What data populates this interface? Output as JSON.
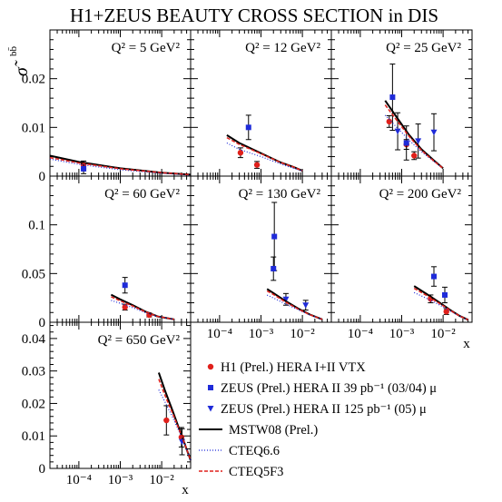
{
  "title": "H1+ZEUS BEAUTY CROSS SECTION in DIS",
  "ylabel": "σ̃",
  "ylabel_superscript": "bb̄",
  "xlabel": "x",
  "colors": {
    "h1": "#e0201b",
    "zeus_03_04": "#1f2bd9",
    "zeus_05": "#1f2bd9",
    "mstw": "#000000",
    "cteq66": "#1f2bd9",
    "cteq5f3": "#e0201b"
  },
  "legend": [
    {
      "key": "h1",
      "label": "H1 (Prel.) HERA I+II VTX",
      "marker": "circle"
    },
    {
      "key": "zeus_03_04",
      "label": "ZEUS (Prel.) HERA II 39 pb⁻¹ (03/04) μ",
      "marker": "square"
    },
    {
      "key": "zeus_05",
      "label": "ZEUS (Prel.) HERA II 125 pb⁻¹ (05) μ",
      "marker": "triangle-down"
    },
    {
      "key": "mstw",
      "label": "MSTW08 (Prel.)",
      "marker": "solid-line"
    },
    {
      "key": "cteq66",
      "label": "CTEQ6.6",
      "marker": "dotted-line"
    },
    {
      "key": "cteq5f3",
      "label": "CTEQ5F3",
      "marker": "dashed-line"
    }
  ],
  "chart_data": [
    {
      "type": "scatter",
      "q2_label": "Q² = 5 GeV²",
      "xscale": "log",
      "xlim": [
        2e-05,
        0.05
      ],
      "ylim": [
        0,
        0.03
      ],
      "yticks": [
        0,
        0.01,
        0.02
      ],
      "ytick_labels": [
        "0",
        "0.01",
        "0.02"
      ],
      "series": [
        {
          "key": "h1",
          "points": [
            {
              "x": 0.00013,
              "y": 0.0023,
              "err": 0.0008
            }
          ]
        },
        {
          "key": "zeus_03_04",
          "points": [
            {
              "x": 0.00013,
              "y": 0.0015,
              "err": 0.001
            }
          ]
        },
        {
          "key": "mstw",
          "curve": [
            [
              2e-05,
              0.0042
            ],
            [
              0.0001,
              0.0029
            ],
            [
              0.001,
              0.0016
            ],
            [
              0.01,
              0.0007
            ],
            [
              0.05,
              0.0003
            ]
          ]
        },
        {
          "key": "cteq66",
          "curve": [
            [
              2e-05,
              0.0035
            ],
            [
              0.0001,
              0.0024
            ],
            [
              0.001,
              0.0013
            ],
            [
              0.01,
              0.0006
            ],
            [
              0.05,
              0.0002
            ]
          ]
        },
        {
          "key": "cteq5f3",
          "curve": [
            [
              2e-05,
              0.0038
            ],
            [
              0.0001,
              0.0027
            ],
            [
              0.001,
              0.0015
            ],
            [
              0.01,
              0.0007
            ],
            [
              0.05,
              0.0003
            ]
          ]
        }
      ]
    },
    {
      "type": "scatter",
      "q2_label": "Q² = 12 GeV²",
      "xscale": "log",
      "xlim": [
        2e-05,
        0.05
      ],
      "ylim": [
        0,
        0.03
      ],
      "series": [
        {
          "key": "h1",
          "points": [
            {
              "x": 0.00032,
              "y": 0.0048,
              "err": 0.001
            },
            {
              "x": 0.0008,
              "y": 0.0023,
              "err": 0.0007
            }
          ]
        },
        {
          "key": "zeus_03_04",
          "points": [
            {
              "x": 0.0005,
              "y": 0.01,
              "err": 0.0025
            }
          ]
        },
        {
          "key": "mstw",
          "curve": [
            [
              0.00015,
              0.0084
            ],
            [
              0.0003,
              0.0068
            ],
            [
              0.001,
              0.0047
            ],
            [
              0.003,
              0.0028
            ],
            [
              0.006,
              0.0019
            ],
            [
              0.01,
              0.0011
            ]
          ]
        },
        {
          "key": "cteq66",
          "curve": [
            [
              0.00015,
              0.0068
            ],
            [
              0.0003,
              0.0055
            ],
            [
              0.001,
              0.004
            ],
            [
              0.003,
              0.0025
            ],
            [
              0.006,
              0.0016
            ],
            [
              0.01,
              0.0011
            ]
          ]
        },
        {
          "key": "cteq5f3",
          "curve": [
            [
              0.00015,
              0.0079
            ],
            [
              0.0003,
              0.0065
            ],
            [
              0.001,
              0.0046
            ],
            [
              0.003,
              0.0028
            ],
            [
              0.006,
              0.0019
            ],
            [
              0.01,
              0.0011
            ]
          ]
        }
      ]
    },
    {
      "type": "scatter",
      "q2_label": "Q² = 25 GeV²",
      "xscale": "log",
      "xlim": [
        2e-05,
        0.05
      ],
      "ylim": [
        0,
        0.03
      ],
      "series": [
        {
          "key": "h1",
          "points": [
            {
              "x": 0.0005,
              "y": 0.0112,
              "err": 0.0012
            },
            {
              "x": 0.0013,
              "y": 0.0065,
              "err": 0.001
            },
            {
              "x": 0.002,
              "y": 0.0042,
              "err": 0.0008
            }
          ]
        },
        {
          "key": "zeus_03_04",
          "points": [
            {
              "x": 0.0006,
              "y": 0.0162,
              "err": 0.0068
            },
            {
              "x": 0.0013,
              "y": 0.0068,
              "err": 0.0035
            }
          ]
        },
        {
          "key": "zeus_05",
          "points": [
            {
              "x": 0.0008,
              "y": 0.0092,
              "err": 0.0038
            },
            {
              "x": 0.0025,
              "y": 0.0072,
              "err": 0.0035
            },
            {
              "x": 0.006,
              "y": 0.009,
              "err": 0.0038
            }
          ]
        },
        {
          "key": "mstw",
          "curve": [
            [
              0.0004,
              0.0155
            ],
            [
              0.0008,
              0.0118
            ],
            [
              0.0015,
              0.0085
            ],
            [
              0.003,
              0.0055
            ],
            [
              0.006,
              0.0032
            ],
            [
              0.01,
              0.0016
            ]
          ]
        },
        {
          "key": "cteq66",
          "curve": [
            [
              0.0004,
              0.0125
            ],
            [
              0.0008,
              0.0098
            ],
            [
              0.0015,
              0.0074
            ],
            [
              0.003,
              0.005
            ],
            [
              0.006,
              0.003
            ],
            [
              0.01,
              0.0016
            ]
          ]
        },
        {
          "key": "cteq5f3",
          "curve": [
            [
              0.0004,
              0.0146
            ],
            [
              0.0008,
              0.0112
            ],
            [
              0.0015,
              0.0082
            ],
            [
              0.003,
              0.0053
            ],
            [
              0.006,
              0.0031
            ],
            [
              0.01,
              0.0016
            ]
          ]
        }
      ]
    },
    {
      "type": "scatter",
      "q2_label": "Q² = 60 GeV²",
      "xscale": "log",
      "xlim": [
        2e-05,
        0.05
      ],
      "ylim": [
        0,
        0.15
      ],
      "yticks": [
        0,
        0.05,
        0.1
      ],
      "ytick_labels": [
        "0",
        "0.05",
        "0.1"
      ],
      "series": [
        {
          "key": "h1",
          "points": [
            {
              "x": 0.0013,
              "y": 0.0155,
              "err": 0.003
            },
            {
              "x": 0.005,
              "y": 0.0075,
              "err": 0.002
            }
          ]
        },
        {
          "key": "zeus_03_04",
          "points": [
            {
              "x": 0.0013,
              "y": 0.038,
              "err": 0.008
            }
          ]
        },
        {
          "key": "mstw",
          "curve": [
            [
              0.0006,
              0.0283
            ],
            [
              0.001,
              0.0235
            ],
            [
              0.002,
              0.0175
            ],
            [
              0.004,
              0.011
            ],
            [
              0.008,
              0.006
            ],
            [
              0.02,
              0.003
            ]
          ]
        },
        {
          "key": "cteq66",
          "curve": [
            [
              0.0006,
              0.0225
            ],
            [
              0.001,
              0.0195
            ],
            [
              0.002,
              0.015
            ],
            [
              0.004,
              0.01
            ],
            [
              0.008,
              0.0058
            ],
            [
              0.02,
              0.003
            ]
          ]
        },
        {
          "key": "cteq5f3",
          "curve": [
            [
              0.0006,
              0.0262
            ],
            [
              0.001,
              0.022
            ],
            [
              0.002,
              0.0167
            ],
            [
              0.004,
              0.0108
            ],
            [
              0.008,
              0.006
            ],
            [
              0.02,
              0.003
            ]
          ]
        }
      ]
    },
    {
      "type": "scatter",
      "q2_label": "Q² = 130 GeV²",
      "xscale": "log",
      "xlim": [
        2e-05,
        0.05
      ],
      "ylim": [
        0,
        0.15
      ],
      "xticks": [
        0.0001,
        0.001,
        0.01
      ],
      "xtick_labels": [
        "10⁻⁴",
        "10⁻³",
        "10⁻²"
      ],
      "series": [
        {
          "key": "zeus_03_04",
          "points": [
            {
              "x": 0.0021,
              "y": 0.088,
              "err": 0.035
            },
            {
              "x": 0.002,
              "y": 0.055,
              "err": 0.012
            }
          ]
        },
        {
          "key": "zeus_05",
          "points": [
            {
              "x": 0.004,
              "y": 0.0235,
              "err": 0.006
            },
            {
              "x": 0.012,
              "y": 0.0175,
              "err": 0.005
            }
          ]
        },
        {
          "key": "mstw",
          "curve": [
            [
              0.0014,
              0.0342
            ],
            [
              0.002,
              0.03
            ],
            [
              0.004,
              0.0215
            ],
            [
              0.008,
              0.014
            ],
            [
              0.015,
              0.008
            ],
            [
              0.03,
              0.003
            ]
          ]
        },
        {
          "key": "cteq66",
          "curve": [
            [
              0.0014,
              0.0279
            ],
            [
              0.002,
              0.025
            ],
            [
              0.004,
              0.0185
            ],
            [
              0.008,
              0.0128
            ],
            [
              0.015,
              0.0075
            ],
            [
              0.03,
              0.003
            ]
          ]
        },
        {
          "key": "cteq5f3",
          "curve": [
            [
              0.0014,
              0.0321
            ],
            [
              0.002,
              0.0285
            ],
            [
              0.004,
              0.0205
            ],
            [
              0.008,
              0.0135
            ],
            [
              0.015,
              0.0078
            ],
            [
              0.03,
              0.003
            ]
          ]
        }
      ]
    },
    {
      "type": "scatter",
      "q2_label": "Q² = 200 GeV²",
      "xscale": "log",
      "xlim": [
        2e-05,
        0.05
      ],
      "ylim": [
        0,
        0.15
      ],
      "xticks": [
        0.0001,
        0.001,
        0.01
      ],
      "xtick_labels": [
        "10⁻⁴",
        "10⁻³",
        "10⁻²"
      ],
      "xlabel": "x",
      "series": [
        {
          "key": "h1",
          "points": [
            {
              "x": 0.005,
              "y": 0.024,
              "err": 0.004
            },
            {
              "x": 0.012,
              "y": 0.011,
              "err": 0.003
            }
          ]
        },
        {
          "key": "zeus_03_04",
          "points": [
            {
              "x": 0.006,
              "y": 0.047,
              "err": 0.01
            },
            {
              "x": 0.011,
              "y": 0.028,
              "err": 0.008
            }
          ]
        },
        {
          "key": "mstw",
          "curve": [
            [
              0.002,
              0.0372
            ],
            [
              0.004,
              0.029
            ],
            [
              0.008,
              0.0205
            ],
            [
              0.015,
              0.0125
            ],
            [
              0.025,
              0.0065
            ],
            [
              0.04,
              0.0025
            ]
          ]
        },
        {
          "key": "cteq66",
          "curve": [
            [
              0.002,
              0.0305
            ],
            [
              0.004,
              0.0245
            ],
            [
              0.008,
              0.018
            ],
            [
              0.015,
              0.0115
            ],
            [
              0.025,
              0.0062
            ],
            [
              0.04,
              0.0025
            ]
          ]
        },
        {
          "key": "cteq5f3",
          "curve": [
            [
              0.002,
              0.0348
            ],
            [
              0.004,
              0.0275
            ],
            [
              0.008,
              0.0196
            ],
            [
              0.015,
              0.0122
            ],
            [
              0.025,
              0.0064
            ],
            [
              0.04,
              0.0025
            ]
          ]
        }
      ]
    },
    {
      "type": "scatter",
      "q2_label": "Q² = 650 GeV²",
      "xscale": "log",
      "xlim": [
        2e-05,
        0.05
      ],
      "ylim": [
        0,
        0.045
      ],
      "yticks": [
        0,
        0.01,
        0.02,
        0.03,
        0.04
      ],
      "ytick_labels": [
        "0",
        "0.01",
        "0.02",
        "0.03",
        "0.04"
      ],
      "xticks": [
        0.0001,
        0.001,
        0.01
      ],
      "xtick_labels": [
        "10⁻⁴",
        "10⁻³",
        "10⁻²"
      ],
      "xlabel": "x",
      "series": [
        {
          "key": "h1",
          "points": [
            {
              "x": 0.013,
              "y": 0.0148,
              "err": 0.0045
            },
            {
              "x": 0.03,
              "y": 0.0096,
              "err": 0.003
            }
          ]
        },
        {
          "key": "zeus_05",
          "points": [
            {
              "x": 0.031,
              "y": 0.0082,
              "err": 0.004
            }
          ]
        },
        {
          "key": "mstw",
          "curve": [
            [
              0.0085,
              0.0295
            ],
            [
              0.012,
              0.024
            ],
            [
              0.018,
              0.018
            ],
            [
              0.025,
              0.013
            ],
            [
              0.035,
              0.008
            ],
            [
              0.05,
              0.0025
            ]
          ]
        },
        {
          "key": "cteq66",
          "curve": [
            [
              0.0085,
              0.0242
            ],
            [
              0.012,
              0.0205
            ],
            [
              0.018,
              0.016
            ],
            [
              0.025,
              0.012
            ],
            [
              0.035,
              0.0078
            ],
            [
              0.05,
              0.0025
            ]
          ]
        },
        {
          "key": "cteq5f3",
          "curve": [
            [
              0.0085,
              0.0275
            ],
            [
              0.012,
              0.0225
            ],
            [
              0.018,
              0.0172
            ],
            [
              0.025,
              0.0127
            ],
            [
              0.035,
              0.008
            ],
            [
              0.05,
              0.0025
            ]
          ]
        }
      ]
    }
  ]
}
